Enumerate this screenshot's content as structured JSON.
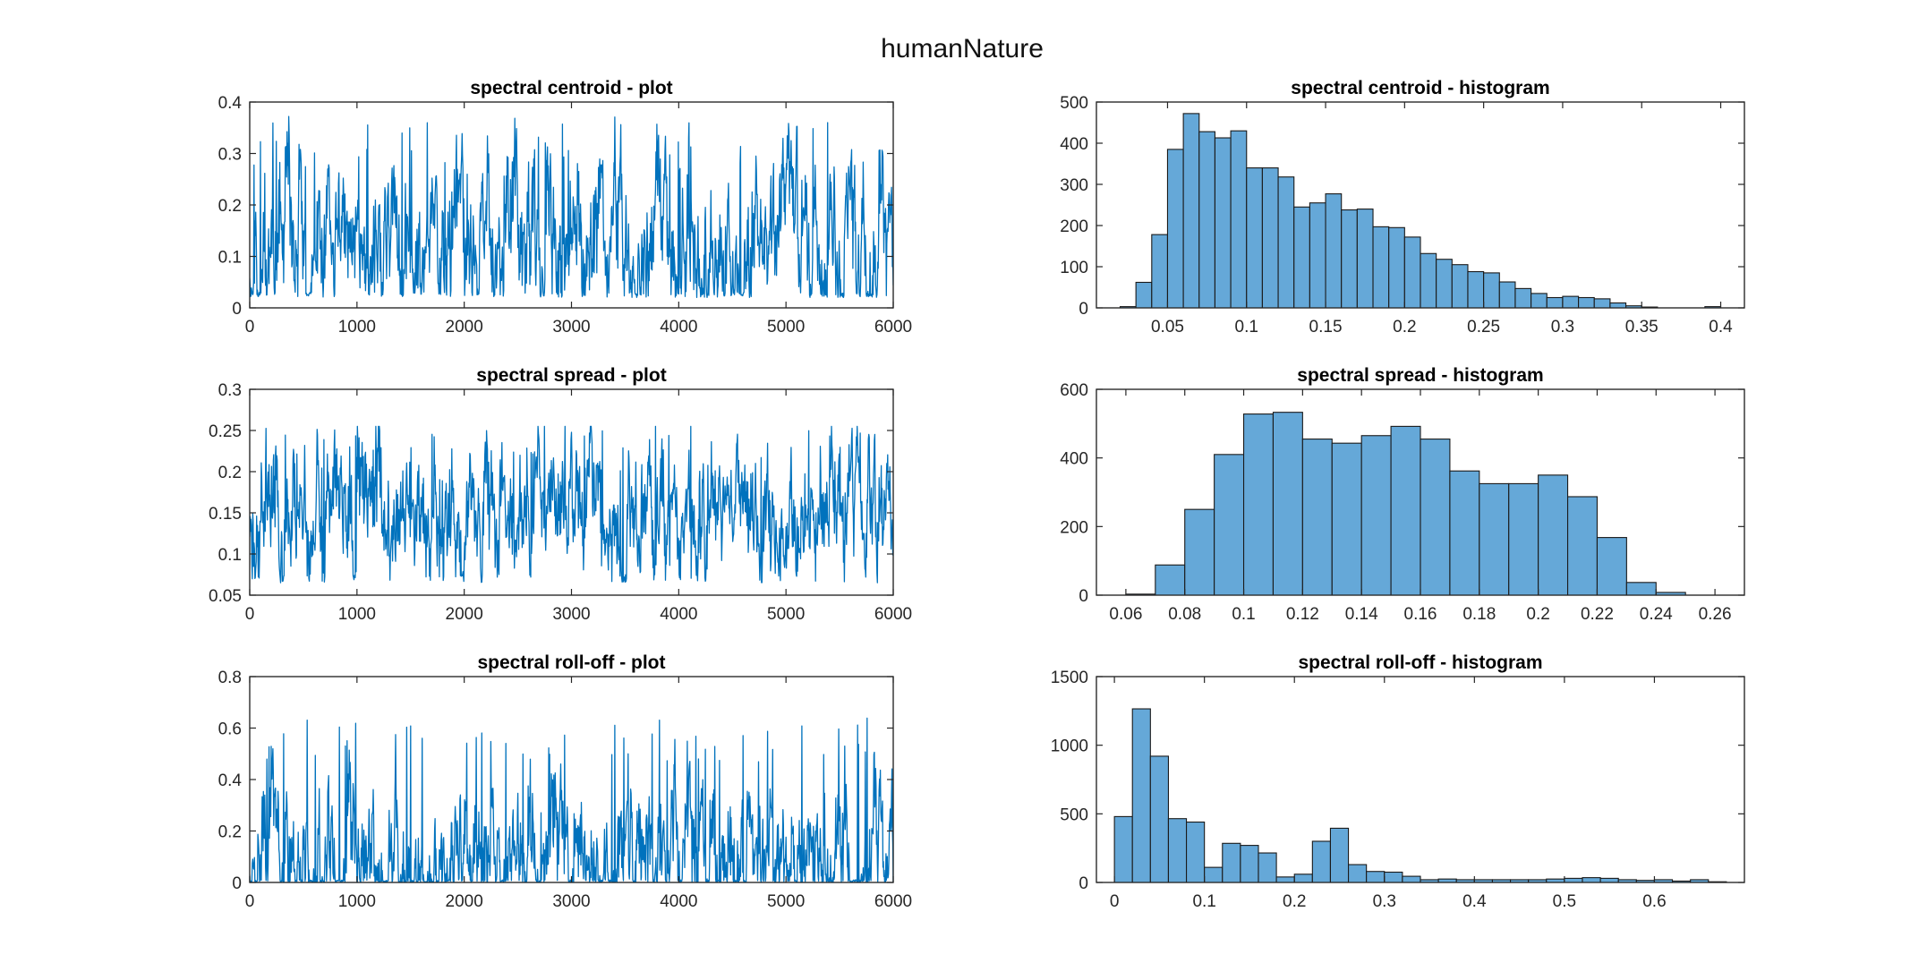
{
  "figure": {
    "title": "humanNature"
  },
  "colors": {
    "line": "#0072bd",
    "bar_fill": "#65a8d8",
    "bar_edge": "#1a1a1a",
    "axis": "#262626"
  },
  "chart_data": [
    {
      "id": "centroid-plot",
      "type": "line",
      "title": "spectral centroid - plot",
      "xlim": [
        0,
        6000
      ],
      "ylim": [
        0,
        0.4
      ],
      "xticks": [
        0,
        1000,
        2000,
        3000,
        4000,
        5000,
        6000
      ],
      "xtick_labels": [
        "0",
        "1000",
        "2000",
        "3000",
        "4000",
        "5000",
        "6000"
      ],
      "yticks": [
        0,
        0.1,
        0.2,
        0.3,
        0.4
      ],
      "ytick_labels": [
        "0",
        "0.1",
        "0.2",
        "0.3",
        "0.4"
      ],
      "signal": {
        "n": 6000,
        "baseline": 0.12,
        "min": 0.02,
        "max": 0.39,
        "spike_level": 0.3,
        "seed": 11
      }
    },
    {
      "id": "centroid-hist",
      "type": "bar",
      "title": "spectral centroid - histogram",
      "xlim": [
        0.005,
        0.415
      ],
      "ylim": [
        0,
        500
      ],
      "xticks": [
        0.05,
        0.1,
        0.15,
        0.2,
        0.25,
        0.3,
        0.35,
        0.4
      ],
      "xtick_labels": [
        "0.05",
        "0.1",
        "0.15",
        "0.2",
        "0.25",
        "0.3",
        "0.35",
        "0.4"
      ],
      "yticks": [
        0,
        100,
        200,
        300,
        400,
        500
      ],
      "ytick_labels": [
        "0",
        "100",
        "200",
        "300",
        "400",
        "500"
      ],
      "bin_start": 0.02,
      "bin_width": 0.01,
      "values": [
        3,
        62,
        178,
        385,
        472,
        428,
        413,
        430,
        340,
        340,
        318,
        245,
        255,
        277,
        238,
        240,
        197,
        195,
        172,
        132,
        118,
        105,
        88,
        85,
        63,
        47,
        35,
        25,
        28,
        25,
        22,
        12,
        5,
        2,
        0,
        0,
        0,
        3
      ]
    },
    {
      "id": "spread-plot",
      "type": "line",
      "title": "spectral spread - plot",
      "xlim": [
        0,
        6000
      ],
      "ylim": [
        0.05,
        0.3
      ],
      "xticks": [
        0,
        1000,
        2000,
        3000,
        4000,
        5000,
        6000
      ],
      "xtick_labels": [
        "0",
        "1000",
        "2000",
        "3000",
        "4000",
        "5000",
        "6000"
      ],
      "yticks": [
        0.05,
        0.1,
        0.15,
        0.2,
        0.25,
        0.3
      ],
      "ytick_labels": [
        "0.05",
        "0.1",
        "0.15",
        "0.2",
        "0.25",
        "0.3"
      ],
      "signal": {
        "n": 6000,
        "baseline": 0.15,
        "min": 0.065,
        "max": 0.255,
        "spike_level": 0.22,
        "seed": 23
      }
    },
    {
      "id": "spread-hist",
      "type": "bar",
      "title": "spectral spread - histogram",
      "xlim": [
        0.05,
        0.27
      ],
      "ylim": [
        0,
        600
      ],
      "xticks": [
        0.06,
        0.08,
        0.1,
        0.12,
        0.14,
        0.16,
        0.18,
        0.2,
        0.22,
        0.24,
        0.26
      ],
      "xtick_labels": [
        "0.06",
        "0.08",
        "0.1",
        "0.12",
        "0.14",
        "0.16",
        "0.18",
        "0.2",
        "0.22",
        "0.24",
        "0.26"
      ],
      "yticks": [
        0,
        200,
        400,
        600
      ],
      "ytick_labels": [
        "0",
        "200",
        "400",
        "600"
      ],
      "bin_start": 0.06,
      "bin_width": 0.01,
      "values": [
        3,
        88,
        250,
        410,
        528,
        533,
        455,
        443,
        465,
        492,
        455,
        362,
        325,
        325,
        350,
        287,
        168,
        37,
        8
      ]
    },
    {
      "id": "rolloff-plot",
      "type": "line",
      "title": "spectral roll-off - plot",
      "xlim": [
        0,
        6000
      ],
      "ylim": [
        0,
        0.8
      ],
      "xticks": [
        0,
        1000,
        2000,
        3000,
        4000,
        5000,
        6000
      ],
      "xtick_labels": [
        "0",
        "1000",
        "2000",
        "3000",
        "4000",
        "5000",
        "6000"
      ],
      "yticks": [
        0,
        0.2,
        0.4,
        0.6,
        0.8
      ],
      "ytick_labels": [
        "0",
        "0.2",
        "0.4",
        "0.6",
        "0.8"
      ],
      "signal": {
        "n": 6000,
        "baseline": 0.08,
        "min": 0.0,
        "max": 0.64,
        "spike_level": 0.55,
        "seed": 37
      }
    },
    {
      "id": "rolloff-hist",
      "type": "bar",
      "title": "spectral roll-off - histogram",
      "xlim": [
        -0.02,
        0.7
      ],
      "ylim": [
        0,
        1500
      ],
      "xticks": [
        0,
        0.1,
        0.2,
        0.3,
        0.4,
        0.5,
        0.6
      ],
      "xtick_labels": [
        "0",
        "0.1",
        "0.2",
        "0.3",
        "0.4",
        "0.5",
        "0.6"
      ],
      "yticks": [
        0,
        500,
        1000,
        1500
      ],
      "ytick_labels": [
        "0",
        "500",
        "1000",
        "1500"
      ],
      "bin_start": 0.0,
      "bin_width": 0.02,
      "values": [
        480,
        1265,
        920,
        465,
        440,
        110,
        285,
        270,
        215,
        40,
        60,
        300,
        395,
        130,
        80,
        75,
        45,
        20,
        25,
        20,
        20,
        20,
        20,
        20,
        25,
        30,
        35,
        30,
        20,
        15,
        20,
        10,
        20,
        5
      ]
    }
  ]
}
